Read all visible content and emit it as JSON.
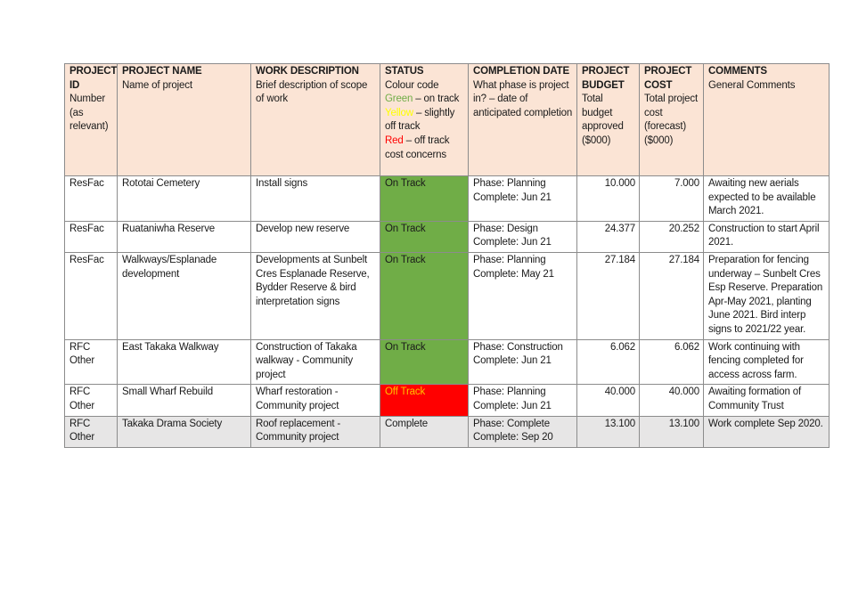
{
  "table": {
    "headers": [
      {
        "title": "PROJECT ID",
        "desc": "Number (as relevant)"
      },
      {
        "title": "PROJECT NAME",
        "desc": "Name of project"
      },
      {
        "title": "WORK DESCRIPTION",
        "desc": "Brief description of scope of work"
      },
      {
        "title": "STATUS",
        "desc": "Colour code",
        "legend": [
          {
            "word": "Green",
            "text": " – on track",
            "color": "#70ad47"
          },
          {
            "word": "Yellow",
            "text": " – slightly off track",
            "color": "#ffff00"
          },
          {
            "word": "Red",
            "text": " – off track cost concerns",
            "color": "#ff0000"
          }
        ]
      },
      {
        "title": "COMPLETION DATE",
        "desc": "What phase is project in? – date of anticipated completion"
      },
      {
        "title": "PROJECT BUDGET",
        "desc": "Total budget approved ($000)"
      },
      {
        "title": "PROJECT COST",
        "desc": "Total project cost (forecast) ($000)"
      },
      {
        "title": "COMMENTS",
        "desc": "General Comments"
      }
    ],
    "rows": [
      {
        "cells": [
          "ResFac",
          "Rototai Cemetery",
          "Install signs",
          "On Track",
          "Phase: Planning\nComplete: Jun 21",
          "10.000",
          "7.000",
          "Awaiting new aerials expected to be available March 2021."
        ],
        "status_fill": "#70ad47",
        "status_text": "#1a1a1a",
        "fill": "#ffffff"
      },
      {
        "cells": [
          "ResFac",
          "Ruataniwha Reserve",
          "Develop new reserve",
          "On Track",
          "Phase: Design\nComplete: Jun 21",
          "24.377",
          "20.252",
          "Construction to start April 2021."
        ],
        "status_fill": "#70ad47",
        "status_text": "#1a1a1a",
        "fill": "#ffffff"
      },
      {
        "cells": [
          "ResFac",
          "Walkways/Esplanade development",
          "Developments at Sunbelt Cres Esplanade Reserve, Bydder Reserve & bird interpretation signs",
          "On Track",
          "Phase: Planning\nComplete: May 21",
          "27.184",
          "27.184",
          "Preparation for fencing underway – Sunbelt Cres Esp Reserve. Preparation Apr-May 2021, planting June 2021. Bird interp signs to 2021/22 year."
        ],
        "status_fill": "#70ad47",
        "status_text": "#1a1a1a",
        "fill": "#ffffff"
      },
      {
        "cells": [
          "RFC Other",
          "East Takaka Walkway",
          "Construction of Takaka walkway - Community project",
          "On Track",
          "Phase: Construction\nComplete: Jun 21",
          "6.062",
          "6.062",
          "Work continuing with fencing completed for access across farm."
        ],
        "status_fill": "#70ad47",
        "status_text": "#1a1a1a",
        "fill": "#ffffff"
      },
      {
        "cells": [
          "RFC Other",
          "Small Wharf Rebuild",
          "Wharf restoration - Community project",
          "Off Track",
          "Phase: Planning\nComplete: Jun 21",
          "40.000",
          "40.000",
          "Awaiting formation of Community Trust"
        ],
        "status_fill": "#ff0000",
        "status_text": "#ffc000",
        "fill": "#ffffff"
      },
      {
        "cells": [
          "RFC Other",
          "Takaka Drama Society",
          "Roof replacement - Community project",
          "Complete",
          "Phase: Complete\nComplete: Sep 20",
          "13.100",
          "13.100",
          "Work complete Sep 2020."
        ],
        "status_fill": "#e7e6e6",
        "status_text": "#1a1a1a",
        "fill": "#e7e6e6"
      }
    ]
  }
}
